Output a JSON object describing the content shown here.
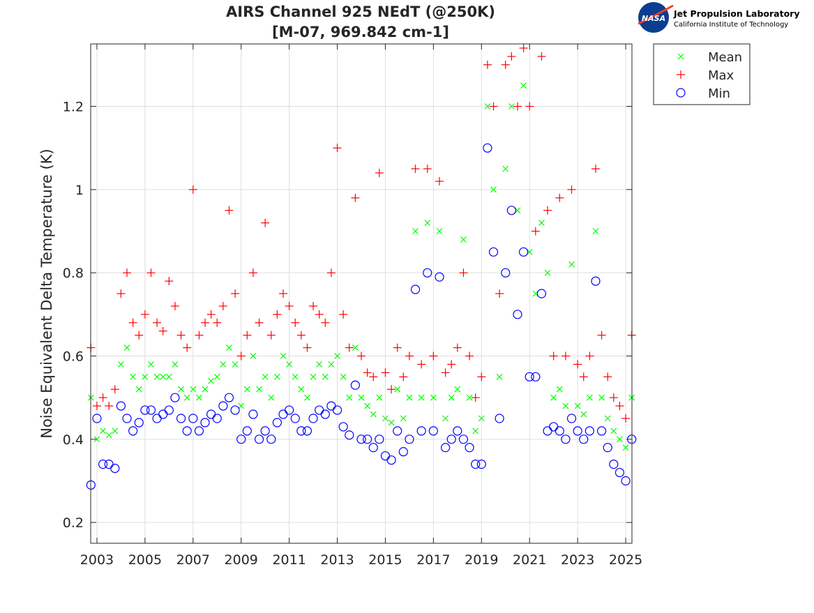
{
  "logo": {
    "agency": "NASA",
    "lab_name": "Jet Propulsion Laboratory",
    "lab_subtitle": "California Institute of Technology"
  },
  "colors": {
    "mean": "#00ff00",
    "max": "#ff0000",
    "min": "#0000ff",
    "grid": "#dedede"
  },
  "chart_data": {
    "type": "scatter",
    "title": "AIRS Channel 925 NEdT (@250K)",
    "subtitle": "[M-07, 969.842 cm-1]",
    "xlabel": "",
    "ylabel": "Noise Equivalent Delta Temperature (K)",
    "xlim": [
      2002.74,
      2025.26
    ],
    "ylim": [
      0.15,
      1.35
    ],
    "xticks": [
      2003,
      2005,
      2007,
      2009,
      2011,
      2013,
      2015,
      2017,
      2019,
      2021,
      2023,
      2025
    ],
    "xtick_labels": [
      "2003",
      "2005",
      "2007",
      "2009",
      "2011",
      "2013",
      "2015",
      "2017",
      "2019",
      "2021",
      "2023",
      "2025"
    ],
    "yticks": [
      0.2,
      0.4,
      0.6,
      0.8,
      1.0,
      1.2
    ],
    "ytick_labels": [
      "0.2",
      "0.4",
      "0.6",
      "0.8",
      "1",
      "1.2"
    ],
    "grid": true,
    "legend_placement": "outside-top-right",
    "x_start": 2002.75,
    "x_step_years": 0.25,
    "series": [
      {
        "name": "Mean",
        "marker": "x",
        "color": "#00ff00",
        "values": [
          0.5,
          0.4,
          0.42,
          0.41,
          0.42,
          0.58,
          0.62,
          0.55,
          0.52,
          0.55,
          0.58,
          0.55,
          0.55,
          0.55,
          0.58,
          0.52,
          0.5,
          0.52,
          0.5,
          0.52,
          0.54,
          0.55,
          0.58,
          0.62,
          0.58,
          0.48,
          0.52,
          0.6,
          0.52,
          0.55,
          0.5,
          0.55,
          0.6,
          0.58,
          0.55,
          0.52,
          0.5,
          0.55,
          0.58,
          0.55,
          0.58,
          0.6,
          0.55,
          0.5,
          0.62,
          0.5,
          0.48,
          0.46,
          0.5,
          0.45,
          0.44,
          0.52,
          0.45,
          0.5,
          0.9,
          0.5,
          0.92,
          0.5,
          0.9,
          0.45,
          0.5,
          0.52,
          0.88,
          0.5,
          0.42,
          0.45,
          1.2,
          1.0,
          0.55,
          1.05,
          1.2,
          0.95,
          1.25,
          0.85,
          0.75,
          0.92,
          0.8,
          0.5,
          0.52,
          0.48,
          0.82,
          0.48,
          0.46,
          0.5,
          0.9,
          0.5,
          0.45,
          0.42,
          0.4,
          0.38,
          0.5
        ]
      },
      {
        "name": "Max",
        "marker": "+",
        "color": "#ff0000",
        "values": [
          0.62,
          0.48,
          0.5,
          0.48,
          0.52,
          0.75,
          0.8,
          0.68,
          0.65,
          0.7,
          0.8,
          0.68,
          0.66,
          0.78,
          0.72,
          0.65,
          0.62,
          1.0,
          0.65,
          0.68,
          0.7,
          0.68,
          0.72,
          0.95,
          0.75,
          0.6,
          0.65,
          0.8,
          0.68,
          0.92,
          0.65,
          0.7,
          0.75,
          0.72,
          0.68,
          0.65,
          0.62,
          0.72,
          0.7,
          0.68,
          0.8,
          1.1,
          0.7,
          0.62,
          0.98,
          0.6,
          0.56,
          0.55,
          1.04,
          0.56,
          0.52,
          0.62,
          0.55,
          0.6,
          1.05,
          0.58,
          1.05,
          0.6,
          1.02,
          0.56,
          0.58,
          0.62,
          0.8,
          0.6,
          0.5,
          0.55,
          1.3,
          1.2,
          0.75,
          1.3,
          1.32,
          1.2,
          1.34,
          1.2,
          0.9,
          1.32,
          0.95,
          0.6,
          0.98,
          0.6,
          1.0,
          0.58,
          0.55,
          0.6,
          1.05,
          0.65,
          0.55,
          0.5,
          0.48,
          0.45,
          0.65
        ]
      },
      {
        "name": "Min",
        "marker": "o",
        "color": "#0000ff",
        "values": [
          0.29,
          0.45,
          0.34,
          0.34,
          0.33,
          0.48,
          0.45,
          0.42,
          0.44,
          0.47,
          0.47,
          0.45,
          0.46,
          0.47,
          0.5,
          0.45,
          0.42,
          0.45,
          0.42,
          0.44,
          0.46,
          0.45,
          0.48,
          0.5,
          0.47,
          0.4,
          0.42,
          0.46,
          0.4,
          0.42,
          0.4,
          0.44,
          0.46,
          0.47,
          0.45,
          0.42,
          0.42,
          0.45,
          0.47,
          0.46,
          0.48,
          0.47,
          0.43,
          0.41,
          0.53,
          0.4,
          0.4,
          0.38,
          0.4,
          0.36,
          0.35,
          0.42,
          0.37,
          0.4,
          0.76,
          0.42,
          0.8,
          0.42,
          0.79,
          0.38,
          0.4,
          0.42,
          0.4,
          0.38,
          0.34,
          0.34,
          1.1,
          0.85,
          0.45,
          0.8,
          0.95,
          0.7,
          0.85,
          0.55,
          0.55,
          0.75,
          0.42,
          0.43,
          0.42,
          0.4,
          0.45,
          0.42,
          0.4,
          0.42,
          0.78,
          0.42,
          0.38,
          0.34,
          0.32,
          0.3,
          0.4
        ]
      }
    ]
  }
}
